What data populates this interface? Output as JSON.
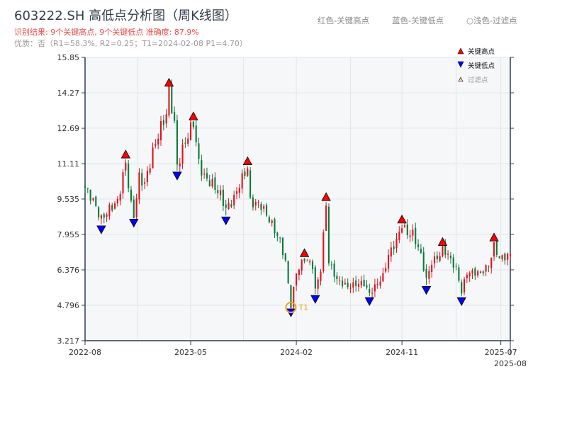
{
  "title": "603222.SH 高低点分析图（周K线图）",
  "result_text": "识别结果: 9个关键高点, 9个关键低点  准确度: 87.9%",
  "quality_text": "优质：否（R1=58.3%, R2=0.25；T1=2024-02-08 P1=4.70）",
  "color_hints": [
    "红色-关键高点",
    "蓝色-关键低点",
    "○浅色-过滤点"
  ],
  "colors": {
    "up": "#e0121b",
    "down": "#0b7a3a",
    "high_marker": "#ff0000",
    "low_marker": "#0000ff",
    "t1": "#f0a020",
    "axis": "#2d3e50",
    "plot_bg": "#f5f7f9"
  },
  "chart_data": {
    "type": "candlestick",
    "title": "603222.SH 高低点分析图（周K线图）",
    "ylim": [
      3.217,
      15.85
    ],
    "yticks": [
      "15.85",
      "14.27",
      "12.69",
      "11.11",
      "9.535",
      "7.955",
      "6.376",
      "4.796",
      "3.217"
    ],
    "xticks": [
      {
        "label": "2022-08",
        "week": 0
      },
      {
        "label": "2023-05",
        "week": 39
      },
      {
        "label": "2024-02",
        "week": 78
      },
      {
        "label": "2024-11",
        "week": 117
      },
      {
        "label": "2025-07",
        "week": 153.5
      },
      {
        "label": "2025-08",
        "week": 157
      }
    ],
    "weeks": 157,
    "price_path": [
      [
        0,
        10.04
      ],
      [
        2.6,
        9.56
      ],
      [
        6,
        8.62
      ],
      [
        9,
        9.09
      ],
      [
        12,
        9.41
      ],
      [
        15,
        11.14
      ],
      [
        17,
        9.25
      ],
      [
        18,
        8.78
      ],
      [
        20,
        10.51
      ],
      [
        22,
        10.2
      ],
      [
        25,
        11.62
      ],
      [
        27,
        12.41
      ],
      [
        30,
        13.35
      ],
      [
        31,
        14.4
      ],
      [
        33,
        12.88
      ],
      [
        34,
        10.99
      ],
      [
        37,
        12.09
      ],
      [
        40,
        12.97
      ],
      [
        42,
        11.14
      ],
      [
        44,
        10.51
      ],
      [
        47,
        10.2
      ],
      [
        50,
        9.72
      ],
      [
        52,
        9.09
      ],
      [
        55,
        9.56
      ],
      [
        57,
        10.2
      ],
      [
        60,
        10.95
      ],
      [
        61,
        9.41
      ],
      [
        65,
        9.25
      ],
      [
        68,
        8.62
      ],
      [
        72,
        7.67
      ],
      [
        74,
        6.72
      ],
      [
        76,
        4.76
      ],
      [
        78,
        6.25
      ],
      [
        81,
        6.88
      ],
      [
        84,
        6.56
      ],
      [
        85,
        5.46
      ],
      [
        87,
        6.41
      ],
      [
        89,
        9.34
      ],
      [
        90,
        6.72
      ],
      [
        93,
        5.93
      ],
      [
        97,
        5.62
      ],
      [
        101,
        5.77
      ],
      [
        103,
        5.77
      ],
      [
        105,
        5.3
      ],
      [
        107,
        5.62
      ],
      [
        110,
        6.09
      ],
      [
        112,
        7.04
      ],
      [
        115,
        7.67
      ],
      [
        117,
        8.4
      ],
      [
        119,
        7.99
      ],
      [
        121,
        7.99
      ],
      [
        124,
        7.04
      ],
      [
        126,
        5.93
      ],
      [
        128,
        6.72
      ],
      [
        131,
        7.04
      ],
      [
        132,
        7.35
      ],
      [
        134,
        7.04
      ],
      [
        137,
        6.41
      ],
      [
        139,
        5.4
      ],
      [
        141,
        6.25
      ],
      [
        146,
        6.25
      ],
      [
        149,
        6.56
      ],
      [
        151,
        7.45
      ],
      [
        153,
        6.88
      ],
      [
        157,
        7.04
      ]
    ],
    "key_highs": [
      [
        15,
        11.3
      ],
      [
        31,
        14.5
      ],
      [
        40,
        13.0
      ],
      [
        60,
        11.0
      ],
      [
        81,
        6.9
      ],
      [
        89,
        9.4
      ],
      [
        117,
        8.4
      ],
      [
        132,
        7.4
      ],
      [
        151,
        7.6
      ]
    ],
    "key_lows": [
      [
        6,
        8.4
      ],
      [
        18,
        8.7
      ],
      [
        34,
        10.8
      ],
      [
        52,
        8.8
      ],
      [
        76,
        4.7
      ],
      [
        85,
        5.3
      ],
      [
        105,
        5.2
      ],
      [
        126,
        5.7
      ],
      [
        139,
        5.2
      ]
    ],
    "t1": {
      "label": "T1",
      "week": 76,
      "price": 4.7
    },
    "legend": [
      "关键高点",
      "关键低点",
      "过滤点"
    ],
    "legend_placement": "top-right"
  }
}
